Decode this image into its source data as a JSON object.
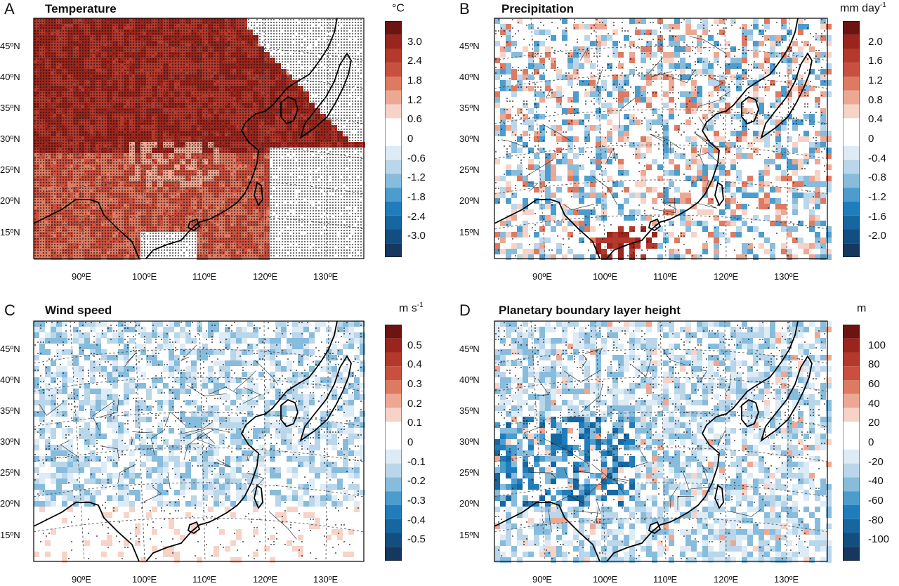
{
  "panels": [
    {
      "letter": "A",
      "title": "Temperature",
      "unit": "°C",
      "unit_sup": "",
      "lat_labels": [
        "45ºN",
        "40ºN",
        "35ºN",
        "30ºN",
        "25ºN",
        "20ºN",
        "15ºN"
      ],
      "lon_labels": [
        "90ºE",
        "100ºE",
        "110ºE",
        "120ºE",
        "130ºE"
      ],
      "colorbar": {
        "labels": [
          "3.0",
          "2.4",
          "1.8",
          "1.2",
          "0.6",
          "0",
          "-0.6",
          "-1.2",
          "-1.8",
          "-2.4",
          "-3.0"
        ],
        "colors": [
          "#6e1410",
          "#99251c",
          "#b4382c",
          "#c9503e",
          "#dd7a62",
          "#eda893",
          "#f7d3c7",
          "#ffffff",
          "#ffffff",
          "#dcebf5",
          "#b9d6ea",
          "#87bcdc",
          "#4c9ccd",
          "#1f7dbc",
          "#1666a0",
          "#134e80",
          "#16375e"
        ]
      },
      "fill": "warm"
    },
    {
      "letter": "B",
      "title": "Precipitation",
      "unit": "mm day",
      "unit_sup": "-1",
      "lat_labels": [
        "45ºN",
        "40ºN",
        "35ºN",
        "30ºN",
        "25ºN",
        "20ºN",
        "15ºN"
      ],
      "lon_labels": [
        "90ºE",
        "100ºE",
        "110ºE",
        "120ºE",
        "130ºE"
      ],
      "colorbar": {
        "labels": [
          "2.0",
          "1.6",
          "1.2",
          "0.8",
          "0.4",
          "0",
          "-0.4",
          "-0.8",
          "-1.2",
          "-1.6",
          "-2.0"
        ],
        "colors": [
          "#6e1410",
          "#99251c",
          "#b4382c",
          "#c9503e",
          "#dd7a62",
          "#eda893",
          "#f7d3c7",
          "#ffffff",
          "#ffffff",
          "#dcebf5",
          "#b9d6ea",
          "#87bcdc",
          "#4c9ccd",
          "#1f7dbc",
          "#1666a0",
          "#134e80",
          "#16375e"
        ]
      },
      "fill": "mixed"
    },
    {
      "letter": "C",
      "title": "Wind speed",
      "unit": "m s",
      "unit_sup": "-1",
      "lat_labels": [
        "45ºN",
        "40ºN",
        "35ºN",
        "30ºN",
        "25ºN",
        "20ºN",
        "15ºN"
      ],
      "lon_labels": [
        "90ºE",
        "100ºE",
        "110ºE",
        "120ºE",
        "130ºE"
      ],
      "colorbar": {
        "labels": [
          "0.5",
          "0.4",
          "0.3",
          "0.2",
          "0.1",
          "0",
          "-0.1",
          "-0.2",
          "-0.3",
          "-0.4",
          "-0.5"
        ],
        "colors": [
          "#6e1410",
          "#99251c",
          "#b4382c",
          "#c9503e",
          "#dd7a62",
          "#eda893",
          "#f7d3c7",
          "#ffffff",
          "#ffffff",
          "#dcebf5",
          "#b9d6ea",
          "#87bcdc",
          "#4c9ccd",
          "#1f7dbc",
          "#1666a0",
          "#134e80",
          "#16375e"
        ]
      },
      "fill": "cool"
    },
    {
      "letter": "D",
      "title": "Planetary boundary layer height",
      "unit": "m",
      "unit_sup": "",
      "lat_labels": [
        "45ºN",
        "40ºN",
        "35ºN",
        "30ºN",
        "25ºN",
        "20ºN",
        "15ºN"
      ],
      "lon_labels": [
        "90ºE",
        "100ºE",
        "110ºE",
        "120ºE",
        "130ºE"
      ],
      "colorbar": {
        "labels": [
          "100",
          "80",
          "60",
          "40",
          "20",
          "0",
          "-20",
          "-40",
          "-60",
          "-80",
          "-100"
        ],
        "colors": [
          "#6e1410",
          "#99251c",
          "#b4382c",
          "#c9503e",
          "#dd7a62",
          "#eda893",
          "#f7d3c7",
          "#ffffff",
          "#ffffff",
          "#dcebf5",
          "#b9d6ea",
          "#87bcdc",
          "#4c9ccd",
          "#1f7dbc",
          "#1666a0",
          "#134e80",
          "#16375e"
        ]
      },
      "fill": "cool-strong"
    }
  ]
}
